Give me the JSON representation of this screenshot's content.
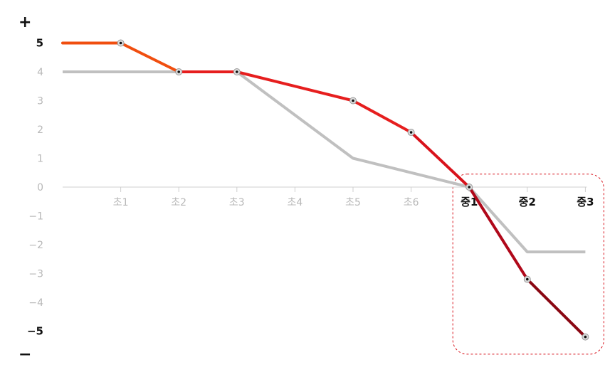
{
  "chart_data": {
    "type": "line",
    "categories": [
      "",
      "초1",
      "초2",
      "초3",
      "초4",
      "초5",
      "초6",
      "중1",
      "중2",
      "중3"
    ],
    "highlighted_categories": [
      "중1",
      "중2",
      "중3"
    ],
    "ylim": [
      -5,
      5
    ],
    "yticks": [
      5,
      4,
      3,
      2,
      1,
      0,
      -1,
      -2,
      -3,
      -4,
      -5
    ],
    "bold_yticks": [
      5,
      -5
    ],
    "sign_top": "+",
    "sign_bottom": "−",
    "series": [
      {
        "color": "#c0c0c0",
        "x": [
          0,
          2,
          3,
          5,
          7,
          8,
          9
        ],
        "values": [
          4,
          4,
          4,
          1,
          0,
          -2.25,
          -2.25
        ],
        "markers": false
      },
      {
        "color": "#e61e1e",
        "x": [
          0,
          1,
          2,
          3,
          5,
          6,
          7,
          8,
          9
        ],
        "values": [
          5,
          5,
          4,
          4,
          3,
          1.9,
          0,
          -3.2,
          -5.2
        ],
        "markers": true,
        "marker_x": [
          1,
          2,
          3,
          5,
          6,
          7,
          8,
          9
        ],
        "segment_colors": [
          "#f04e0f",
          "#f04e0f",
          "#e61e1e",
          "#e61e1e",
          "#e61e1e",
          "#d8121b",
          "#b0081a",
          "#8a0712"
        ]
      }
    ],
    "highlight_box_color": "#d8121b"
  }
}
